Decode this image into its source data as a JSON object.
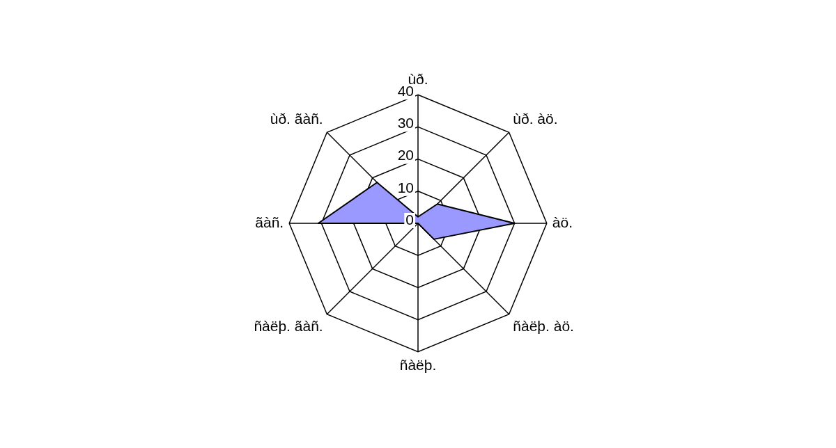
{
  "chart_data": {
    "type": "radar",
    "categories": [
      "ùð.",
      "ùð. àö.",
      "àö.",
      "ñàëþ. àö.",
      "ñàëþ.",
      "ñàëþ. ãàñ.",
      "ãàñ.",
      "ùð. ãàñ."
    ],
    "series": [
      {
        "color": "#9999ff",
        "values": [
          2,
          8.5,
          30,
          7,
          0,
          0,
          31,
          18
        ]
      }
    ],
    "ylim": [
      0,
      40
    ],
    "yticks": [
      0,
      10,
      20,
      30,
      40
    ],
    "grid": true,
    "legend": false,
    "marker": "none"
  }
}
